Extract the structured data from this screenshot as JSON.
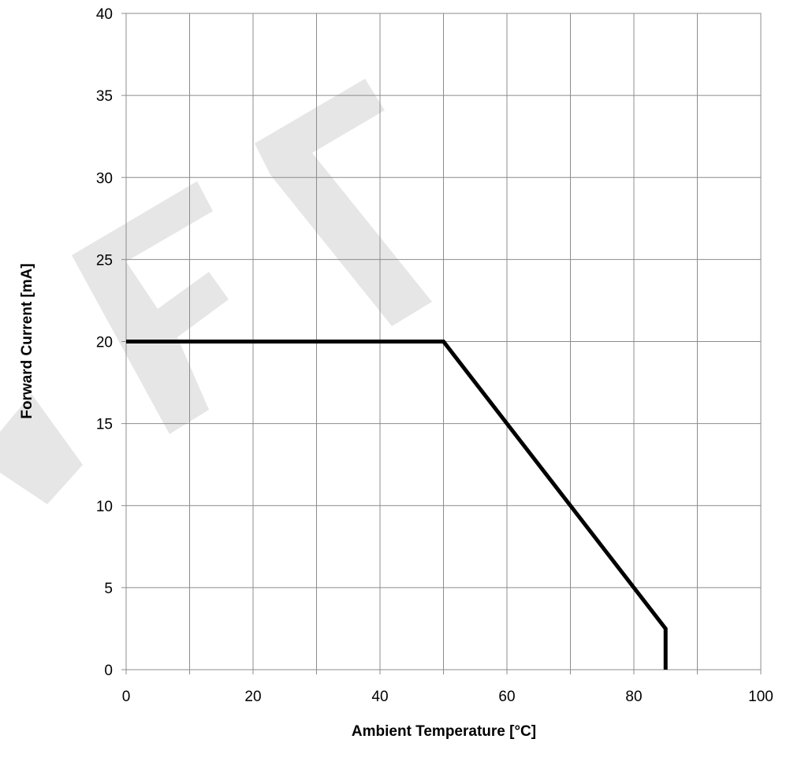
{
  "chart_data": {
    "type": "line",
    "xlabel": "Ambient Temperature [°C]",
    "ylabel": "Forward Current [mA]",
    "xlim": [
      0,
      100
    ],
    "ylim": [
      0,
      40
    ],
    "x_ticks": [
      0,
      20,
      40,
      60,
      80,
      100
    ],
    "y_ticks": [
      0,
      5,
      10,
      15,
      20,
      25,
      30,
      35,
      40
    ],
    "x_minor_gridlines_every": 10,
    "grid": true,
    "legend": "none",
    "watermark": "DRAFT",
    "series": [
      {
        "color": "#000000",
        "x": [
          0,
          50,
          85,
          85
        ],
        "y": [
          20,
          20,
          2.5,
          0
        ]
      }
    ]
  }
}
